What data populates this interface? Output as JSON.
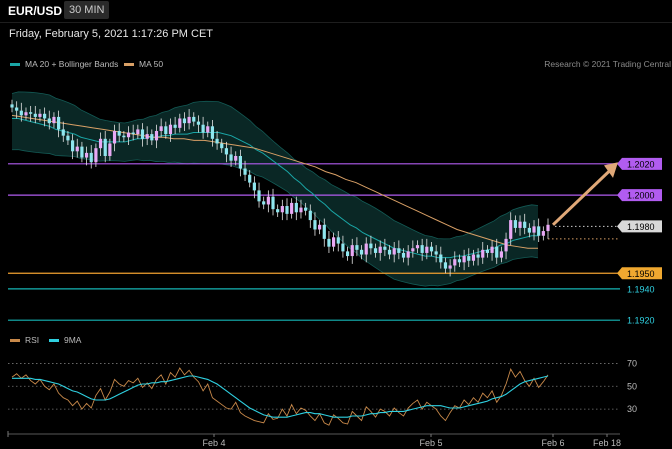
{
  "header": {
    "symbol": "EUR/USD",
    "timeframe": "30 MIN"
  },
  "datetime": "Friday, February 5, 2021 1:17:26 PM CET",
  "legend": {
    "ma20_label": "MA 20 + Bollinger Bands",
    "ma20_color": "#1aa6a6",
    "ma50_label": "MA 50",
    "ma50_color": "#d9a066"
  },
  "research": "Research © 2021 Trading Central",
  "rsi_legend": {
    "rsi_label": "RSI",
    "rsi_color": "#c8894a",
    "ma_label": "9MA",
    "ma_color": "#2fd0e0"
  },
  "chart_data": {
    "type": "candlestick",
    "ylim": [
      1.1915,
      1.208
    ],
    "x_ticks": [
      "Feb 4",
      "Feb 5",
      "Feb 6",
      "Feb 18"
    ],
    "levels": [
      {
        "value": 1.202,
        "label": "1.2020",
        "color": "#b15cf0",
        "style": "solid",
        "label_bg": "#b15cf0",
        "label_fg": "#000"
      },
      {
        "value": 1.2,
        "label": "1.2000",
        "color": "#b15cf0",
        "style": "solid",
        "label_bg": "#b15cf0",
        "label_fg": "#000"
      },
      {
        "value": 1.198,
        "label": "1.1980",
        "color": "#cccccc",
        "style": "dotted",
        "label_bg": "#d8d8d8",
        "label_fg": "#000"
      },
      {
        "value": 1.195,
        "label": "1.1950",
        "color": "#f0a030",
        "style": "solid",
        "label_bg": "#f0a830",
        "label_fg": "#000"
      },
      {
        "value": 1.194,
        "label": "1.1940",
        "color": "#16b5b5",
        "style": "solid",
        "label_bg": "none",
        "label_fg": "#2fd0e0"
      },
      {
        "value": 1.192,
        "label": "1.1920",
        "color": "#16b5b5",
        "style": "solid",
        "label_bg": "none",
        "label_fg": "#2fd0e0"
      }
    ],
    "close": [
      1.2056,
      1.2054,
      1.2051,
      1.2053,
      1.2052,
      1.205,
      1.2052,
      1.2049,
      1.2046,
      1.205,
      1.2042,
      1.2038,
      1.2035,
      1.2028,
      1.2031,
      1.2024,
      1.2027,
      1.2021,
      1.203,
      1.2036,
      1.2025,
      1.2033,
      1.2041,
      1.2038,
      1.2037,
      1.204,
      1.2039,
      1.2042,
      1.2036,
      1.2039,
      1.2035,
      1.2041,
      1.2044,
      1.2039,
      1.2045,
      1.2043,
      1.2049,
      1.2046,
      1.205,
      1.2047,
      1.2045,
      1.204,
      1.2044,
      1.2036,
      1.2033,
      1.203,
      1.2026,
      1.2022,
      1.2025,
      1.2017,
      1.2013,
      1.2008,
      1.2003,
      1.1996,
      1.1994,
      1.1999,
      1.1991,
      1.1989,
      1.1993,
      1.1988,
      1.1995,
      1.1989,
      1.1992,
      1.199,
      1.1984,
      1.1978,
      1.1981,
      1.1972,
      1.1967,
      1.1973,
      1.1969,
      1.1964,
      1.1961,
      1.1968,
      1.1965,
      1.1962,
      1.1969,
      1.1966,
      1.1963,
      1.1967,
      1.1965,
      1.1962,
      1.1966,
      1.1963,
      1.196,
      1.1964,
      1.1966,
      1.1968,
      1.1963,
      1.1967,
      1.1964,
      1.1962,
      1.1957,
      1.1953,
      1.1955,
      1.1959,
      1.1957,
      1.1961,
      1.1958,
      1.1962,
      1.196,
      1.1965,
      1.1963,
      1.1967,
      1.196,
      1.1964,
      1.1972,
      1.1984,
      1.1979,
      1.1983,
      1.1979,
      1.1976,
      1.198,
      1.1974,
      1.1977,
      1.1981
    ],
    "ma20": [
      1.2049,
      1.2049,
      1.2048,
      1.2047,
      1.2046,
      1.2045,
      1.2044,
      1.2042,
      1.2041,
      1.204,
      1.2039,
      1.2037,
      1.2036,
      1.2035,
      1.2034,
      1.2034,
      1.2034,
      1.2034,
      1.2034,
      1.2035,
      1.2036,
      1.2036,
      1.2037,
      1.2037,
      1.2038,
      1.2038,
      1.2039,
      1.2039,
      1.2039,
      1.204,
      1.204,
      1.204,
      1.204,
      1.204,
      1.2039,
      1.2038,
      1.2036,
      1.2034,
      1.2032,
      1.2029,
      1.2027,
      1.2024,
      1.2021,
      1.2018,
      1.2015,
      1.2011,
      1.2008,
      1.2004,
      1.2001,
      1.1997,
      1.1994,
      1.199,
      1.1987,
      1.1984,
      1.1981,
      1.1979,
      1.1976,
      1.1974,
      1.1972,
      1.197,
      1.1968,
      1.1966,
      1.1965,
      1.1964,
      1.1963,
      1.1962,
      1.1961,
      1.1961,
      1.196,
      1.196,
      1.196,
      1.1961,
      1.1961,
      1.1962,
      1.1963,
      1.1964,
      1.1965,
      1.1966,
      1.1968,
      1.1969,
      1.1971,
      1.1972,
      1.1973,
      1.1974,
      1.1974
    ],
    "ma50": [
      1.2051,
      1.205,
      1.2049,
      1.2048,
      1.2047,
      1.2046,
      1.2045,
      1.2044,
      1.2043,
      1.2042,
      1.2041,
      1.204,
      1.2039,
      1.2038,
      1.2037,
      1.2037,
      1.2036,
      1.2036,
      1.2035,
      1.2035,
      1.2034,
      1.2033,
      1.2032,
      1.2031,
      1.203,
      1.2028,
      1.2026,
      1.2024,
      1.2022,
      1.202,
      1.2018,
      1.2015,
      1.2013,
      1.201,
      1.2008,
      1.2005,
      1.2002,
      1.1999,
      1.1996,
      1.1993,
      1.199,
      1.1987,
      1.1984,
      1.1981,
      1.1978,
      1.1976,
      1.1974,
      1.1972,
      1.197,
      1.1968,
      1.1967,
      1.1966,
      1.1966
    ],
    "rsi_levels": [
      70,
      50,
      30
    ],
    "rsi": [
      58,
      61,
      57,
      60,
      55,
      52,
      56,
      50,
      47,
      52,
      44,
      40,
      38,
      33,
      37,
      30,
      35,
      31,
      42,
      48,
      38,
      45,
      56,
      52,
      50,
      55,
      53,
      57,
      49,
      53,
      48,
      56,
      60,
      52,
      62,
      58,
      66,
      60,
      64,
      58,
      54,
      46,
      52,
      40,
      37,
      34,
      31,
      30,
      36,
      27,
      24,
      22,
      20,
      19,
      18,
      26,
      21,
      22,
      30,
      24,
      34,
      26,
      31,
      29,
      24,
      20,
      26,
      18,
      16,
      25,
      22,
      18,
      17,
      28,
      24,
      20,
      32,
      28,
      23,
      30,
      28,
      24,
      31,
      27,
      24,
      31,
      35,
      38,
      30,
      36,
      33,
      30,
      24,
      20,
      27,
      33,
      31,
      38,
      34,
      40,
      36,
      44,
      40,
      46,
      36,
      42,
      52,
      65,
      58,
      63,
      55,
      50,
      57,
      49,
      54,
      60
    ],
    "rsi_ma": [
      57,
      57,
      57,
      57,
      57,
      56,
      56,
      55,
      54,
      53,
      52,
      50,
      48,
      46,
      45,
      43,
      41,
      39,
      38,
      38,
      38,
      39,
      41,
      43,
      45,
      47,
      49,
      51,
      52,
      52,
      53,
      53,
      54,
      54,
      55,
      56,
      57,
      58,
      59,
      59,
      58,
      57,
      56,
      54,
      52,
      49,
      46,
      43,
      40,
      37,
      34,
      31,
      29,
      27,
      25,
      24,
      23,
      23,
      23,
      23,
      24,
      25,
      26,
      27,
      27,
      26,
      26,
      25,
      24,
      23,
      23,
      23,
      23,
      24,
      24,
      24,
      25,
      26,
      26,
      27,
      27,
      28,
      28,
      28,
      28,
      29,
      30,
      31,
      32,
      33,
      33,
      33,
      33,
      32,
      31,
      31,
      31,
      32,
      33,
      34,
      35,
      36,
      37,
      39,
      40,
      41,
      43,
      46,
      49,
      52,
      54,
      55,
      56,
      57,
      58,
      59
    ],
    "rsi_x_extent": 116
  }
}
